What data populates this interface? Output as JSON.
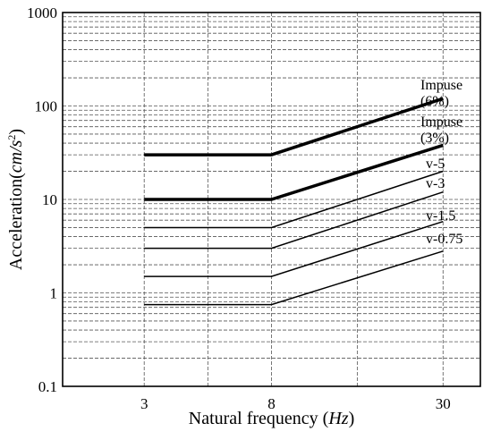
{
  "chart_data": {
    "type": "line",
    "xlabel": "Natural frequency",
    "xlabel_unit": "Hz",
    "ylabel": "Acceleration",
    "ylabel_unit_base": "cm/s",
    "ylabel_unit_exp": "2",
    "x_scale": "log",
    "y_scale": "log",
    "xlim": [
      1.6,
      40
    ],
    "ylim": [
      0.1,
      1000
    ],
    "x_ticks": [
      3,
      8,
      30
    ],
    "y_ticks": [
      0.1,
      1,
      10,
      100,
      1000
    ],
    "x_tick_labels": [
      "3",
      "8",
      "30"
    ],
    "y_tick_labels": [
      "0.1",
      "1",
      "10",
      "100",
      "1000"
    ],
    "grid": true,
    "series": [
      {
        "name": "Impuse (6%)",
        "label_lines": [
          "Impuse",
          "(6%)"
        ],
        "thick": true,
        "x": [
          3,
          8,
          30
        ],
        "y": [
          30,
          30,
          120
        ]
      },
      {
        "name": "Impuse (3%)",
        "label_lines": [
          "Impuse",
          "(3%)"
        ],
        "thick": true,
        "x": [
          3,
          8,
          30
        ],
        "y": [
          10,
          10,
          38
        ]
      },
      {
        "name": "v-5",
        "label_lines": [
          "v-5"
        ],
        "thick": false,
        "x": [
          3,
          8,
          30
        ],
        "y": [
          5,
          5,
          20
        ]
      },
      {
        "name": "v-3",
        "label_lines": [
          "v-3"
        ],
        "thick": false,
        "x": [
          3,
          8,
          30
        ],
        "y": [
          3,
          3,
          12
        ]
      },
      {
        "name": "v-1.5",
        "label_lines": [
          "v-1.5"
        ],
        "thick": false,
        "x": [
          3,
          8,
          30
        ],
        "y": [
          1.5,
          1.5,
          5.8
        ]
      },
      {
        "name": "v-0.75",
        "label_lines": [
          "v-0.75"
        ],
        "thick": false,
        "x": [
          3,
          8,
          30
        ],
        "y": [
          0.75,
          0.75,
          2.8
        ]
      }
    ]
  }
}
